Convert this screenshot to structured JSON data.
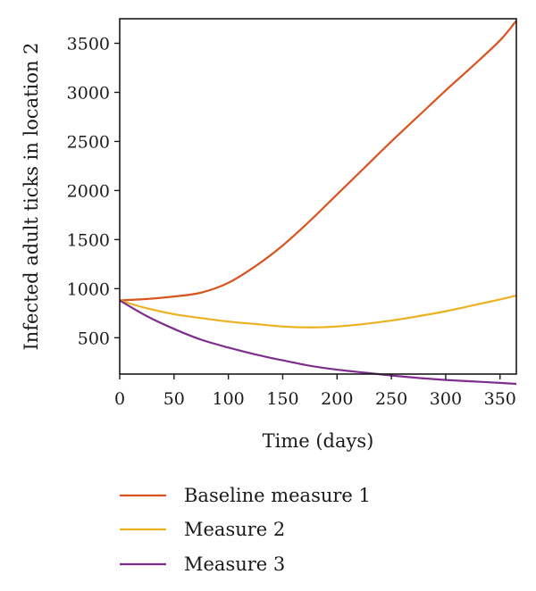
{
  "chart_data": {
    "type": "line",
    "xlabel": "Time (days)",
    "ylabel": "Infected adult ticks in location 2",
    "xlim": [
      0,
      365
    ],
    "ylim": [
      130,
      3750
    ],
    "xticks": [
      0,
      50,
      100,
      150,
      200,
      250,
      300,
      350
    ],
    "yticks": [
      500,
      1000,
      1500,
      2000,
      2500,
      3000,
      3500
    ],
    "grid": false,
    "legend_position": "bottom",
    "series": [
      {
        "name": "Baseline measure 1",
        "color": "#d9541e",
        "x": [
          0,
          25,
          50,
          75,
          100,
          125,
          150,
          175,
          200,
          225,
          250,
          275,
          300,
          325,
          350,
          365
        ],
        "y": [
          880,
          895,
          920,
          960,
          1060,
          1230,
          1440,
          1690,
          1960,
          2230,
          2500,
          2760,
          3020,
          3270,
          3530,
          3730
        ]
      },
      {
        "name": "Measure 2",
        "color": "#edb120",
        "x": [
          0,
          25,
          50,
          75,
          100,
          125,
          150,
          175,
          200,
          225,
          250,
          275,
          300,
          325,
          350,
          365
        ],
        "y": [
          880,
          800,
          740,
          700,
          665,
          640,
          615,
          605,
          615,
          640,
          675,
          720,
          770,
          830,
          890,
          930
        ]
      },
      {
        "name": "Measure 3",
        "color": "#7e2f8e",
        "x": [
          0,
          25,
          50,
          75,
          100,
          125,
          150,
          175,
          200,
          225,
          250,
          275,
          300,
          325,
          350,
          365
        ],
        "y": [
          880,
          720,
          590,
          480,
          400,
          330,
          270,
          215,
          175,
          145,
          115,
          90,
          70,
          55,
          40,
          30
        ]
      }
    ]
  }
}
